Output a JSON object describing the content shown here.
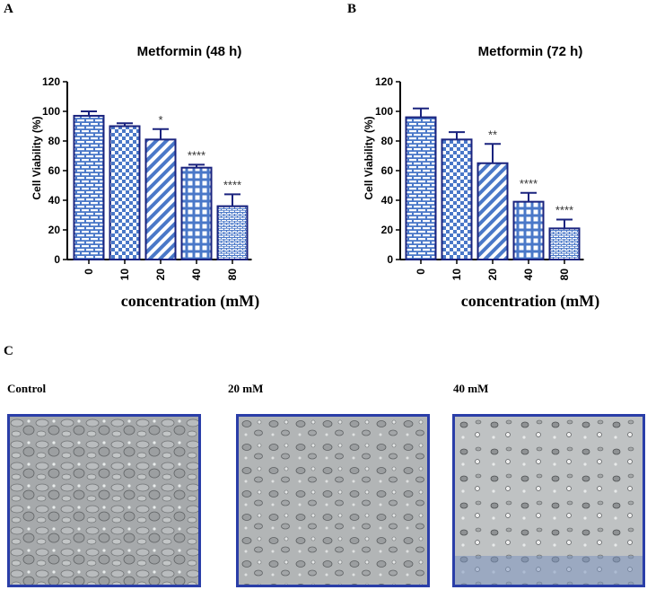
{
  "panels": {
    "a": "A",
    "b": "B",
    "c": "C"
  },
  "chart_data": [
    {
      "type": "bar",
      "title": "Metformin (48 h)",
      "xlabel": "concentration (mM)",
      "ylabel": "Cell Viability (%)",
      "categories": [
        "0",
        "10",
        "20",
        "40",
        "80"
      ],
      "values": [
        97,
        90,
        81,
        62,
        36
      ],
      "errors": [
        3,
        2,
        7,
        2,
        8
      ],
      "significance": [
        "",
        "",
        "*",
        "****",
        "****"
      ],
      "ylim": [
        0,
        120
      ],
      "yticks": [
        0,
        20,
        40,
        60,
        80,
        100,
        120
      ],
      "bar_color": "#4a78c8"
    },
    {
      "type": "bar",
      "title": "Metformin (72 h)",
      "xlabel": "concentration (mM)",
      "ylabel": "Cell Viability (%)",
      "categories": [
        "0",
        "10",
        "20",
        "40",
        "80"
      ],
      "values": [
        96,
        81,
        65,
        39,
        21
      ],
      "errors": [
        6,
        5,
        13,
        6,
        6
      ],
      "significance": [
        "",
        "",
        "**",
        "****",
        "****"
      ],
      "ylim": [
        0,
        120
      ],
      "yticks": [
        0,
        20,
        40,
        60,
        80,
        100,
        120
      ],
      "bar_color": "#4a78c8"
    }
  ],
  "photos": [
    {
      "label": "Control"
    },
    {
      "label": "20 mM"
    },
    {
      "label": "40 mM"
    }
  ]
}
